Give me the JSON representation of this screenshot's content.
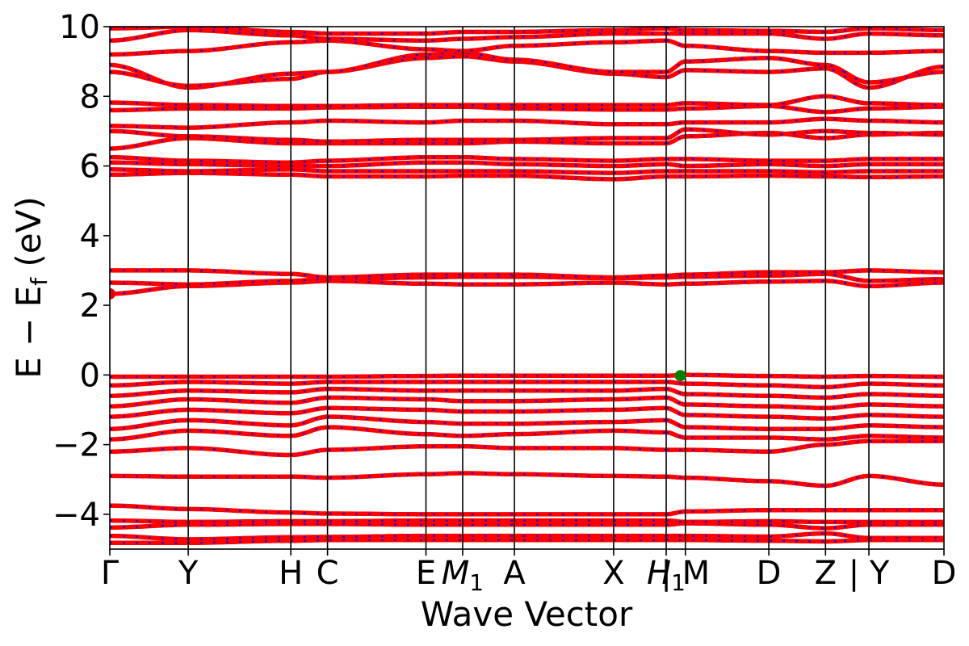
{
  "chart_data": {
    "type": "line",
    "title": "",
    "xlabel": "Wave Vector",
    "ylabel_main": "E − E",
    "ylabel_sub": "f",
    "ylabel_unit": " (eV)",
    "ylim": [
      -5,
      10
    ],
    "yticks": [
      {
        "value": -4,
        "label": "−4"
      },
      {
        "value": -2,
        "label": "−2"
      },
      {
        "value": 0,
        "label": "0"
      },
      {
        "value": 2,
        "label": "2"
      },
      {
        "value": 4,
        "label": "4"
      },
      {
        "value": 6,
        "label": "6"
      },
      {
        "value": 8,
        "label": "8"
      },
      {
        "value": 10,
        "label": "10"
      }
    ],
    "kpath": [
      {
        "pos": 0.0,
        "label": "Γ",
        "sub": ""
      },
      {
        "pos": 0.094,
        "label": "Y",
        "sub": ""
      },
      {
        "pos": 0.217,
        "label": "H",
        "sub": ""
      },
      {
        "pos": 0.261,
        "label": "C",
        "sub": ""
      },
      {
        "pos": 0.379,
        "label": "E",
        "sub": ""
      },
      {
        "pos": 0.423,
        "label": "M",
        "sub": "1"
      },
      {
        "pos": 0.485,
        "label": "A",
        "sub": ""
      },
      {
        "pos": 0.604,
        "label": "X",
        "sub": ""
      },
      {
        "pos": 0.667,
        "label": "H",
        "sub": "1"
      },
      {
        "pos": 0.69,
        "label": "| M",
        "sub": ""
      },
      {
        "pos": 0.79,
        "label": "D",
        "sub": ""
      },
      {
        "pos": 0.858,
        "label": "Z",
        "sub": ""
      },
      {
        "pos": 0.91,
        "label": "| Y",
        "sub": ""
      },
      {
        "pos": 1.0,
        "label": "D",
        "sub": ""
      }
    ],
    "band_segments": [
      {
        "x0": 0.0,
        "x1": 0.667
      },
      {
        "x0": 0.667,
        "x1": 0.88
      },
      {
        "x0": 0.88,
        "x1": 1.0
      }
    ],
    "series": [
      {
        "values": [
          -4.82,
          -4.82,
          -4.76,
          -4.74,
          -4.74,
          -4.74,
          -4.74,
          -4.74,
          -4.74,
          -4.74,
          -4.76,
          -4.78,
          -4.74,
          -4.74
        ]
      },
      {
        "values": [
          -4.62,
          -4.72,
          -4.66,
          -4.65,
          -4.62,
          -4.62,
          -4.62,
          -4.62,
          -4.62,
          -4.62,
          -4.64,
          -4.55,
          -4.68,
          -4.68
        ]
      },
      {
        "values": [
          -4.38,
          -4.3,
          -4.28,
          -4.28,
          -4.3,
          -4.3,
          -4.3,
          -4.3,
          -4.3,
          -4.26,
          -4.3,
          -4.4,
          -4.3,
          -4.3
        ]
      },
      {
        "values": [
          -4.18,
          -4.22,
          -4.2,
          -4.2,
          -4.18,
          -4.18,
          -4.18,
          -4.18,
          -4.18,
          -4.22,
          -4.2,
          -4.22,
          -4.22,
          -4.22
        ]
      },
      {
        "values": [
          -3.75,
          -3.85,
          -3.95,
          -3.98,
          -4.0,
          -4.0,
          -4.0,
          -4.0,
          -4.0,
          -3.92,
          -3.88,
          -3.88,
          -3.88,
          -3.88
        ]
      },
      {
        "values": [
          -2.9,
          -2.92,
          -2.92,
          -2.95,
          -2.85,
          -2.82,
          -2.85,
          -2.9,
          -2.92,
          -2.95,
          -3.05,
          -3.18,
          -2.9,
          -3.15
        ]
      },
      {
        "values": [
          -2.2,
          -2.1,
          -2.3,
          -2.15,
          -2.05,
          -2.05,
          -2.1,
          -2.1,
          -2.15,
          -2.15,
          -2.2,
          -2.0,
          -1.9,
          -1.9
        ]
      },
      {
        "values": [
          -1.85,
          -1.6,
          -1.75,
          -1.5,
          -1.7,
          -1.75,
          -1.7,
          -1.6,
          -1.65,
          -1.8,
          -1.8,
          -1.85,
          -1.75,
          -1.8
        ]
      },
      {
        "values": [
          -1.55,
          -1.3,
          -1.45,
          -1.2,
          -1.35,
          -1.4,
          -1.4,
          -1.35,
          -1.3,
          -1.5,
          -1.55,
          -1.55,
          -1.45,
          -1.5
        ]
      },
      {
        "values": [
          -1.2,
          -1.0,
          -1.1,
          -0.95,
          -1.0,
          -1.05,
          -1.05,
          -1.0,
          -0.95,
          -1.15,
          -1.2,
          -1.25,
          -1.15,
          -1.2
        ]
      },
      {
        "values": [
          -0.9,
          -0.7,
          -0.8,
          -0.65,
          -0.7,
          -0.75,
          -0.75,
          -0.7,
          -0.65,
          -0.85,
          -0.9,
          -0.95,
          -0.85,
          -0.9
        ]
      },
      {
        "values": [
          -0.6,
          -0.45,
          -0.5,
          -0.4,
          -0.45,
          -0.45,
          -0.45,
          -0.45,
          -0.4,
          -0.55,
          -0.6,
          -0.65,
          -0.55,
          -0.6
        ]
      },
      {
        "values": [
          -0.3,
          -0.2,
          -0.25,
          -0.2,
          -0.2,
          -0.2,
          -0.2,
          -0.2,
          -0.2,
          -0.25,
          -0.3,
          -0.35,
          -0.25,
          -0.3
        ]
      },
      {
        "values": [
          -0.05,
          -0.05,
          -0.05,
          -0.05,
          -0.03,
          -0.02,
          -0.02,
          -0.02,
          -0.02,
          0.0,
          -0.03,
          -0.05,
          -0.03,
          -0.05
        ]
      },
      {
        "values": [
          2.33,
          2.55,
          2.65,
          2.7,
          2.62,
          2.6,
          2.6,
          2.65,
          2.6,
          2.62,
          2.68,
          2.7,
          2.55,
          2.65
        ]
      },
      {
        "values": [
          2.65,
          2.6,
          2.7,
          2.75,
          2.8,
          2.82,
          2.82,
          2.78,
          2.8,
          2.82,
          2.85,
          2.9,
          2.7,
          2.75
        ]
      },
      {
        "values": [
          3.0,
          3.0,
          2.9,
          2.8,
          2.88,
          2.88,
          2.88,
          2.8,
          2.85,
          2.88,
          2.95,
          2.95,
          3.0,
          2.95
        ]
      },
      {
        "values": [
          5.75,
          5.8,
          5.75,
          5.7,
          5.7,
          5.72,
          5.72,
          5.62,
          5.7,
          5.7,
          5.72,
          5.7,
          5.68,
          5.7
        ]
      },
      {
        "values": [
          5.9,
          5.85,
          5.9,
          5.85,
          5.85,
          5.85,
          5.85,
          5.8,
          5.85,
          5.85,
          5.85,
          5.82,
          5.85,
          5.85
        ]
      },
      {
        "values": [
          6.1,
          6.05,
          6.0,
          6.0,
          6.1,
          6.1,
          6.05,
          6.0,
          6.05,
          6.0,
          6.05,
          6.0,
          6.05,
          6.05
        ]
      },
      {
        "values": [
          6.25,
          6.15,
          6.1,
          6.15,
          6.25,
          6.25,
          6.2,
          6.15,
          6.2,
          6.2,
          6.15,
          6.15,
          6.2,
          6.2
        ]
      },
      {
        "values": [
          6.5,
          6.8,
          6.65,
          6.65,
          6.65,
          6.65,
          6.7,
          6.65,
          6.65,
          6.85,
          6.95,
          6.8,
          6.9,
          6.95
        ]
      },
      {
        "values": [
          7.0,
          6.85,
          6.75,
          6.7,
          6.75,
          6.75,
          6.75,
          6.8,
          6.8,
          7.05,
          6.9,
          7.0,
          6.95,
          6.9
        ]
      },
      {
        "values": [
          7.15,
          7.1,
          7.25,
          7.3,
          7.25,
          7.3,
          7.3,
          7.2,
          7.2,
          7.25,
          7.25,
          7.35,
          7.3,
          7.25
        ]
      },
      {
        "values": [
          7.6,
          7.65,
          7.65,
          7.68,
          7.7,
          7.7,
          7.65,
          7.62,
          7.62,
          7.65,
          7.72,
          7.55,
          7.65,
          7.7
        ]
      },
      {
        "values": [
          7.82,
          7.75,
          7.72,
          7.72,
          7.75,
          7.75,
          7.75,
          7.75,
          7.75,
          7.8,
          7.75,
          8.0,
          7.8,
          7.75
        ]
      },
      {
        "values": [
          8.9,
          8.25,
          8.65,
          8.7,
          9.1,
          9.15,
          9.0,
          8.65,
          8.55,
          8.75,
          8.7,
          8.8,
          8.25,
          8.85
        ]
      },
      {
        "values": [
          8.7,
          8.3,
          8.5,
          8.7,
          9.2,
          9.25,
          9.05,
          8.7,
          8.7,
          9.0,
          9.1,
          8.9,
          8.4,
          8.7
        ]
      },
      {
        "values": [
          9.2,
          9.3,
          9.55,
          9.6,
          9.35,
          9.3,
          9.45,
          9.55,
          9.6,
          9.45,
          9.3,
          9.25,
          9.25,
          9.3
        ]
      },
      {
        "values": [
          9.6,
          9.9,
          9.75,
          9.65,
          9.6,
          9.65,
          9.7,
          9.8,
          9.8,
          9.8,
          9.8,
          9.65,
          9.8,
          9.75
        ]
      },
      {
        "values": [
          9.95,
          10.0,
          9.85,
          9.8,
          9.8,
          9.85,
          9.85,
          9.9,
          9.95,
          9.9,
          9.88,
          9.85,
          9.95,
          9.9
        ]
      }
    ],
    "markers": [
      {
        "x": 0.0,
        "y": 2.33,
        "color": "#e8000b"
      },
      {
        "x": 0.684,
        "y": -0.02,
        "color": "#008000"
      }
    ],
    "colors": {
      "band": "#ff0000",
      "band_accent": "#0000ff",
      "vline": "#000000"
    }
  }
}
